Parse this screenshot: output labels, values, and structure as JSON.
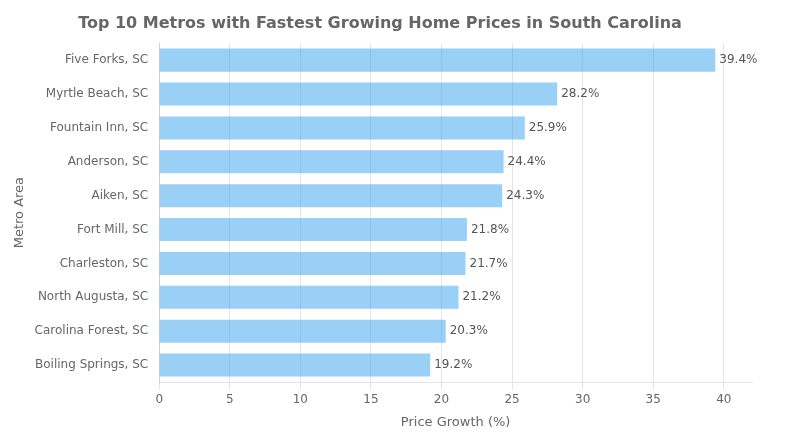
{
  "chart_data": {
    "type": "bar",
    "orientation": "horizontal",
    "title": "Top 10 Metros with Fastest Growing Home Prices in South Carolina",
    "xlabel": "Price Growth (%)",
    "ylabel": "Metro Area",
    "categories": [
      "Five Forks, SC",
      "Myrtle Beach, SC",
      "Fountain Inn, SC",
      "Anderson, SC",
      "Aiken, SC",
      "Fort Mill, SC",
      "Charleston, SC",
      "North Augusta, SC",
      "Carolina Forest, SC",
      "Boiling Springs, SC"
    ],
    "values": [
      39.4,
      28.2,
      25.9,
      24.4,
      24.3,
      21.8,
      21.7,
      21.2,
      20.3,
      19.2
    ],
    "value_labels": [
      "39.4%",
      "28.2%",
      "25.9%",
      "24.4%",
      "24.3%",
      "21.8%",
      "21.7%",
      "21.2%",
      "20.3%",
      "19.2%"
    ],
    "data_labels": true,
    "xlim": [
      0,
      42
    ],
    "xticks": [
      0,
      5,
      10,
      15,
      20,
      25,
      30,
      35,
      40
    ],
    "grid": true
  }
}
